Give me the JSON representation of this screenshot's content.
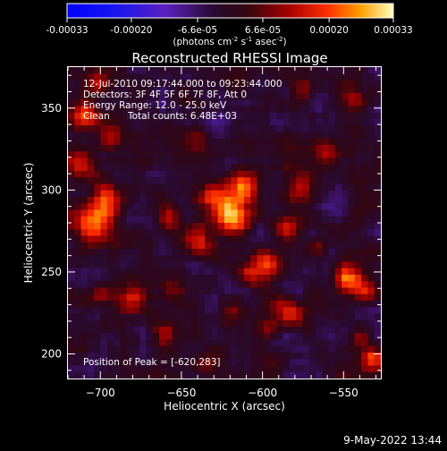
{
  "chart_data": {
    "type": "heatmap",
    "title": "Reconstructed RHESSI Image",
    "xlabel": "Heliocentric X (arcsec)",
    "ylabel": "Heliocentric Y (arcsec)",
    "xlim": [
      -720,
      -527
    ],
    "ylim": [
      185,
      375
    ],
    "xticks": [
      -700,
      -650,
      -600,
      -550
    ],
    "yticks": [
      200,
      250,
      300,
      350
    ],
    "colorbar": {
      "min": -0.00033,
      "max": 0.00033,
      "ticks": [
        {
          "value": -0.00033,
          "label": "-0.00033"
        },
        {
          "value": -0.0002,
          "label": "-0.00020"
        },
        {
          "value": -6.6e-05,
          "label": "-6.6e-05"
        },
        {
          "value": 6.6e-05,
          "label": "6.6e-05"
        },
        {
          "value": 0.0002,
          "label": "0.00020"
        },
        {
          "value": 0.00033,
          "label": "0.00033"
        }
      ],
      "units_text": "(photons cm",
      "units_exp1": "-2",
      "units_mid": " s",
      "units_exp2": "-1",
      "units_mid2": " asec",
      "units_exp3": "-2",
      "units_end": ")"
    },
    "peak": {
      "x": -620,
      "y": 283,
      "value": 0.00033
    },
    "hotspots": [
      {
        "x": -620,
        "y": 283,
        "sigma": 7,
        "amp": 0.00033
      },
      {
        "x": -612,
        "y": 300,
        "sigma": 8,
        "amp": 0.00024
      },
      {
        "x": -633,
        "y": 296,
        "sigma": 6,
        "amp": 0.0002
      },
      {
        "x": -641,
        "y": 270,
        "sigma": 6,
        "amp": 0.00018
      },
      {
        "x": -657,
        "y": 282,
        "sigma": 5,
        "amp": 0.00013
      },
      {
        "x": -703,
        "y": 280,
        "sigma": 8,
        "amp": 0.00027
      },
      {
        "x": -697,
        "y": 296,
        "sigma": 6,
        "amp": 0.00022
      },
      {
        "x": -713,
        "y": 315,
        "sigma": 6,
        "amp": 0.00017
      },
      {
        "x": -708,
        "y": 345,
        "sigma": 6,
        "amp": 0.00023
      },
      {
        "x": -693,
        "y": 330,
        "sigma": 5,
        "amp": 0.00014
      },
      {
        "x": -700,
        "y": 365,
        "sigma": 5,
        "amp": 0.00015
      },
      {
        "x": -680,
        "y": 232,
        "sigma": 6,
        "amp": 0.00016
      },
      {
        "x": -660,
        "y": 212,
        "sigma": 5,
        "amp": 0.00014
      },
      {
        "x": -700,
        "y": 235,
        "sigma": 5,
        "amp": 0.00012
      },
      {
        "x": -598,
        "y": 255,
        "sigma": 6,
        "amp": 0.00022
      },
      {
        "x": -607,
        "y": 248,
        "sigma": 5,
        "amp": 0.00015
      },
      {
        "x": -585,
        "y": 278,
        "sigma": 5,
        "amp": 0.00016
      },
      {
        "x": -575,
        "y": 300,
        "sigma": 6,
        "amp": 0.00014
      },
      {
        "x": -560,
        "y": 322,
        "sigma": 5,
        "amp": 0.00012
      },
      {
        "x": -548,
        "y": 245,
        "sigma": 6,
        "amp": 0.00026
      },
      {
        "x": -535,
        "y": 238,
        "sigma": 5,
        "amp": 0.00017
      },
      {
        "x": -583,
        "y": 226,
        "sigma": 6,
        "amp": 0.00018
      },
      {
        "x": -597,
        "y": 215,
        "sigma": 5,
        "amp": 0.00014
      },
      {
        "x": -532,
        "y": 198,
        "sigma": 5,
        "amp": 0.00022
      },
      {
        "x": -540,
        "y": 210,
        "sigma": 4,
        "amp": 0.00013
      },
      {
        "x": -545,
        "y": 355,
        "sigma": 6,
        "amp": 0.00013
      },
      {
        "x": -575,
        "y": 360,
        "sigma": 5,
        "amp": 0.00011
      },
      {
        "x": -640,
        "y": 330,
        "sigma": 6,
        "amp": 0.00012
      },
      {
        "x": -655,
        "y": 240,
        "sigma": 5,
        "amp": 0.0001
      },
      {
        "x": -618,
        "y": 225,
        "sigma": 5,
        "amp": 0.0001
      },
      {
        "x": -635,
        "y": 195,
        "sigma": 5,
        "amp": 0.00011
      },
      {
        "x": -566,
        "y": 265,
        "sigma": 4,
        "amp": 0.0001
      }
    ]
  },
  "annotation": {
    "time_range": "12-Jul-2010 09:17:44.000 to 09:23:44.000",
    "detectors": "Detectors: 3F 4F 5F 6F 7F 8F, Att 0",
    "energy_range": "Energy Range: 12.0 - 25.0 keV",
    "clean": "Clean",
    "total_counts": "Total counts: 6.48E+03",
    "peak_position": "Position of Peak = [-620,283]"
  },
  "timestamp": "9-May-2022 13:44"
}
